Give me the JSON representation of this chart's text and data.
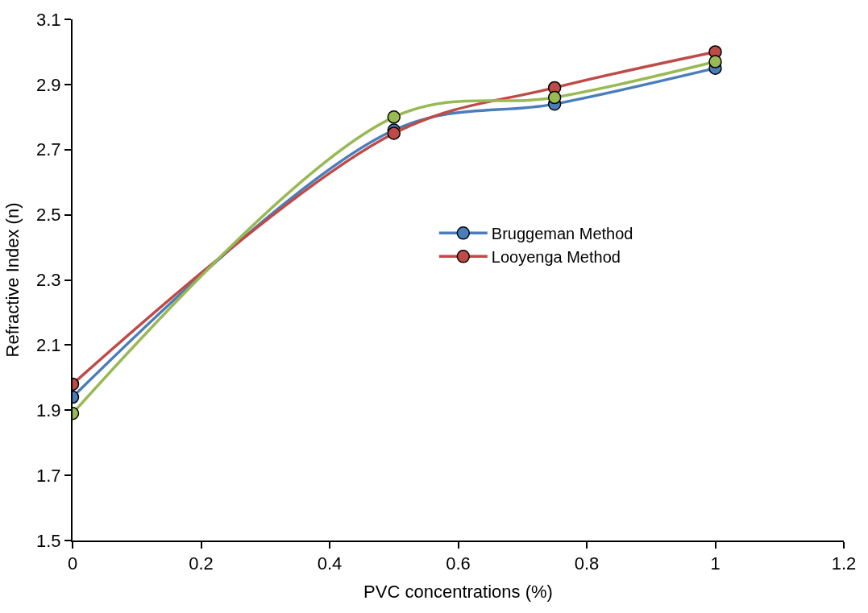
{
  "chart_data": {
    "type": "line",
    "xlabel": "PVC concentrations (%)",
    "ylabel": "Refractive Index (n)",
    "x": [
      0,
      0.5,
      0.75,
      1
    ],
    "series": [
      {
        "name": "Bruggeman Method",
        "color": "#4a7ebb",
        "values": [
          1.94,
          2.76,
          2.84,
          2.95
        ]
      },
      {
        "name": "Looyenga Method",
        "color": "#be4b48",
        "values": [
          1.98,
          2.75,
          2.89,
          3.0
        ]
      },
      {
        "color": "#98b954",
        "values": [
          1.89,
          2.8,
          2.86,
          2.97
        ]
      }
    ],
    "xlim": [
      0,
      1.2
    ],
    "xticks": [
      0,
      0.2,
      0.4,
      0.6,
      0.8,
      1,
      1.2
    ],
    "ylim": [
      1.5,
      3.1
    ],
    "yticks": [
      1.5,
      1.7,
      1.9,
      2.1,
      2.3,
      2.5,
      2.7,
      2.9,
      3.1
    ],
    "marker": "circle",
    "legend": "center"
  }
}
